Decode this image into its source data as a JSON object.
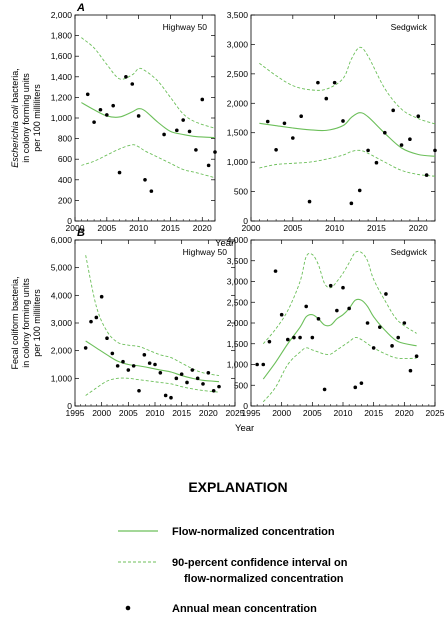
{
  "colors": {
    "line": "#6cbf5a",
    "points": "#000000",
    "frame": "#000000"
  },
  "chart_data": [
    {
      "type": "line",
      "letter": "A",
      "title": "Highway 50",
      "ylabel_lines": [
        "Escherichia coli bacteria,",
        "in colony forming units",
        "per 100 milliliters"
      ],
      "ylabel_italic": "Escherichia coli",
      "xlabel": "Year",
      "xlim": [
        2000,
        2022
      ],
      "xticks": [
        2000,
        2005,
        2010,
        2015,
        2020
      ],
      "xtick_labels": [
        "2000",
        "2005",
        "2010",
        "2015",
        "2020"
      ],
      "ylim": [
        0,
        2000
      ],
      "yticks": [
        0,
        200,
        400,
        600,
        800,
        1000,
        1200,
        1400,
        1600,
        1800,
        2000
      ],
      "ytick_labels": [
        "0",
        "200",
        "400",
        "600",
        "800",
        "1,000",
        "1,200",
        "1,400",
        "1,600",
        "1,800",
        "2,000"
      ],
      "series": [
        {
          "role": "flow-normalized",
          "x": [
            2001,
            2003,
            2005,
            2007,
            2009,
            2010,
            2011,
            2013,
            2015,
            2017,
            2019,
            2022
          ],
          "values": [
            1150,
            1080,
            1020,
            1010,
            1060,
            1090,
            1070,
            960,
            870,
            840,
            820,
            810
          ]
        },
        {
          "role": "ci-upper",
          "x": [
            2001,
            2003,
            2005,
            2007,
            2009,
            2010,
            2011,
            2013,
            2015,
            2017,
            2019,
            2022
          ],
          "values": [
            1780,
            1680,
            1520,
            1380,
            1420,
            1480,
            1460,
            1360,
            1200,
            1040,
            960,
            900
          ]
        },
        {
          "role": "ci-lower",
          "x": [
            2001,
            2003,
            2005,
            2007,
            2009,
            2010,
            2011,
            2013,
            2015,
            2017,
            2019,
            2022
          ],
          "values": [
            540,
            580,
            640,
            700,
            740,
            720,
            680,
            620,
            560,
            500,
            470,
            420
          ]
        },
        {
          "role": "annual-mean",
          "x": [
            2002,
            2003,
            2004,
            2005,
            2006,
            2007,
            2008,
            2009,
            2010,
            2011,
            2012,
            2014,
            2016,
            2017,
            2018,
            2019,
            2020,
            2021,
            2022
          ],
          "values": [
            1230,
            960,
            1080,
            1030,
            1120,
            470,
            1400,
            1330,
            1020,
            400,
            290,
            840,
            880,
            980,
            870,
            690,
            1180,
            540,
            670
          ]
        }
      ]
    },
    {
      "type": "line",
      "letter": "",
      "title": "Sedgwick",
      "xlabel": "Year",
      "xlim": [
        2000,
        2022
      ],
      "xticks": [
        2000,
        2005,
        2010,
        2015,
        2020
      ],
      "xtick_labels": [
        "2000",
        "2005",
        "2010",
        "2015",
        "2020"
      ],
      "ylim": [
        0,
        3500
      ],
      "yticks": [
        0,
        500,
        1000,
        1500,
        2000,
        2500,
        3000,
        3500
      ],
      "ytick_labels": [
        "0",
        "500",
        "1,000",
        "1,500",
        "2,000",
        "2,500",
        "3,000",
        "3,500"
      ],
      "series": [
        {
          "role": "flow-normalized",
          "x": [
            2001,
            2003,
            2005,
            2007,
            2009,
            2011,
            2012,
            2013,
            2014,
            2016,
            2018,
            2020,
            2022
          ],
          "values": [
            1660,
            1620,
            1580,
            1550,
            1540,
            1620,
            1760,
            1840,
            1770,
            1490,
            1240,
            1130,
            1100
          ]
        },
        {
          "role": "ci-upper",
          "x": [
            2001,
            2003,
            2005,
            2007,
            2009,
            2011,
            2012,
            2013,
            2014,
            2016,
            2018,
            2020,
            2022
          ],
          "values": [
            2680,
            2470,
            2300,
            2230,
            2240,
            2420,
            2750,
            2950,
            2800,
            2250,
            1900,
            1740,
            1650
          ]
        },
        {
          "role": "ci-lower",
          "x": [
            2001,
            2003,
            2005,
            2007,
            2009,
            2011,
            2012,
            2013,
            2014,
            2016,
            2018,
            2020,
            2022
          ],
          "values": [
            900,
            960,
            980,
            1000,
            1050,
            1120,
            1180,
            1200,
            1150,
            1000,
            860,
            790,
            760
          ]
        },
        {
          "role": "annual-mean",
          "x": [
            2002,
            2003,
            2004,
            2005,
            2006,
            2007,
            2008,
            2009,
            2010,
            2011,
            2012,
            2013,
            2014,
            2015,
            2016,
            2017,
            2018,
            2019,
            2020,
            2021,
            2022
          ],
          "values": [
            1690,
            1210,
            1660,
            1410,
            1780,
            330,
            2350,
            2080,
            2350,
            1700,
            300,
            520,
            1200,
            990,
            1500,
            1880,
            1290,
            1390,
            1780,
            780,
            1200
          ]
        }
      ]
    },
    {
      "type": "line",
      "letter": "B",
      "title": "Highway 50",
      "ylabel_lines": [
        "Fecal coliform bacteria,",
        "in colony forming units",
        "per 100 milliliters"
      ],
      "xlabel": "Year",
      "xlim": [
        1995,
        2025
      ],
      "xticks": [
        1995,
        2000,
        2005,
        2010,
        2015,
        2020,
        2025
      ],
      "xtick_labels": [
        "1995",
        "2000",
        "2005",
        "2010",
        "2015",
        "2020",
        "2025"
      ],
      "ylim": [
        0,
        6000
      ],
      "yticks": [
        0,
        1000,
        2000,
        3000,
        4000,
        5000,
        6000
      ],
      "ytick_labels": [
        "0",
        "1,000",
        "2,000",
        "3,000",
        "4,000",
        "5,000",
        "6,000"
      ],
      "series": [
        {
          "role": "flow-normalized",
          "x": [
            1997,
            1999,
            2001,
            2003,
            2005,
            2007,
            2009,
            2011,
            2013,
            2015,
            2017,
            2019,
            2022
          ],
          "values": [
            2350,
            2100,
            1850,
            1620,
            1500,
            1450,
            1380,
            1300,
            1230,
            1100,
            1000,
            930,
            880
          ]
        },
        {
          "role": "ci-upper",
          "x": [
            1997,
            1999,
            2001,
            2003,
            2005,
            2007,
            2009,
            2011,
            2013,
            2015,
            2017,
            2019,
            2022
          ],
          "values": [
            5450,
            3600,
            2700,
            2300,
            2200,
            2150,
            2000,
            1850,
            1750,
            1550,
            1350,
            1200,
            1100
          ]
        },
        {
          "role": "ci-lower",
          "x": [
            1997,
            1999,
            2001,
            2003,
            2005,
            2007,
            2009,
            2011,
            2013,
            2015,
            2017,
            2019,
            2022
          ],
          "values": [
            380,
            650,
            900,
            1000,
            1000,
            950,
            900,
            850,
            800,
            700,
            620,
            560,
            500
          ]
        },
        {
          "role": "annual-mean",
          "x": [
            1997,
            1998,
            1999,
            2000,
            2001,
            2002,
            2003,
            2004,
            2005,
            2006,
            2007,
            2008,
            2009,
            2010,
            2011,
            2012,
            2013,
            2014,
            2015,
            2016,
            2017,
            2018,
            2019,
            2020,
            2021,
            2022
          ],
          "values": [
            2100,
            3050,
            3200,
            3950,
            2450,
            1900,
            1450,
            1600,
            1300,
            1450,
            550,
            1850,
            1550,
            1500,
            1200,
            380,
            300,
            1000,
            1150,
            850,
            1300,
            1000,
            800,
            1200,
            550,
            700
          ]
        }
      ]
    },
    {
      "type": "line",
      "letter": "",
      "title": "Sedgwick",
      "xlabel": "Year",
      "xlim": [
        1995,
        2025
      ],
      "xticks": [
        1995,
        2000,
        2005,
        2010,
        2015,
        2020,
        2025
      ],
      "xtick_labels": [
        "1995",
        "2000",
        "2005",
        "2010",
        "2015",
        "2020",
        "2025"
      ],
      "ylim": [
        0,
        4000
      ],
      "yticks": [
        0,
        500,
        1000,
        1500,
        2000,
        2500,
        3000,
        3500,
        4000
      ],
      "ytick_labels": [
        "0",
        "500",
        "1,000",
        "1,500",
        "2,000",
        "2,500",
        "3,000",
        "3,500",
        "4,000"
      ],
      "series": [
        {
          "role": "flow-normalized",
          "x": [
            1997,
            1999,
            2001,
            2003,
            2004,
            2005,
            2006,
            2007,
            2008,
            2009,
            2010,
            2011,
            2012,
            2013,
            2014,
            2015,
            2017,
            2019,
            2022
          ],
          "values": [
            650,
            1050,
            1500,
            1900,
            2150,
            2200,
            2100,
            1950,
            1950,
            2100,
            2200,
            2350,
            2550,
            2550,
            2400,
            2150,
            1800,
            1550,
            1450
          ]
        },
        {
          "role": "ci-upper",
          "x": [
            1997,
            1999,
            2001,
            2003,
            2004,
            2005,
            2006,
            2007,
            2008,
            2009,
            2010,
            2011,
            2012,
            2013,
            2014,
            2015,
            2017,
            2019,
            2022
          ],
          "values": [
            1500,
            1850,
            2300,
            3000,
            3600,
            3650,
            3400,
            2950,
            2850,
            3000,
            3200,
            3450,
            3700,
            3700,
            3500,
            3050,
            2500,
            2050,
            1750
          ]
        },
        {
          "role": "ci-lower",
          "x": [
            1997,
            1999,
            2001,
            2003,
            2004,
            2005,
            2006,
            2007,
            2008,
            2009,
            2010,
            2011,
            2012,
            2013,
            2014,
            2015,
            2017,
            2019,
            2022
          ],
          "values": [
            100,
            450,
            1000,
            1300,
            1400,
            1350,
            1300,
            1250,
            1250,
            1350,
            1450,
            1550,
            1650,
            1600,
            1500,
            1400,
            1250,
            1150,
            1150
          ]
        },
        {
          "role": "annual-mean",
          "x": [
            1996,
            1997,
            1998,
            1999,
            2000,
            2001,
            2002,
            2003,
            2004,
            2005,
            2006,
            2007,
            2008,
            2009,
            2010,
            2011,
            2012,
            2013,
            2014,
            2015,
            2016,
            2017,
            2018,
            2019,
            2020,
            2021,
            2022
          ],
          "values": [
            1000,
            1000,
            1550,
            3250,
            2200,
            1600,
            1650,
            1650,
            2400,
            1650,
            2100,
            400,
            2900,
            2300,
            2850,
            2350,
            450,
            550,
            2000,
            1400,
            1900,
            2700,
            1450,
            1650,
            2000,
            850,
            1200
          ]
        }
      ]
    }
  ],
  "explanation": {
    "title": "EXPLANATION",
    "items": [
      {
        "label": "Flow-normalized concentration",
        "lines": [
          "Flow-normalized concentration"
        ]
      },
      {
        "label": "90-percent confidence interval on flow-normalized concentration",
        "lines": [
          "90-percent confidence interval on",
          "flow-normalized concentration"
        ]
      },
      {
        "label": "Annual mean concentration",
        "lines": [
          "Annual mean concentration"
        ]
      }
    ]
  }
}
